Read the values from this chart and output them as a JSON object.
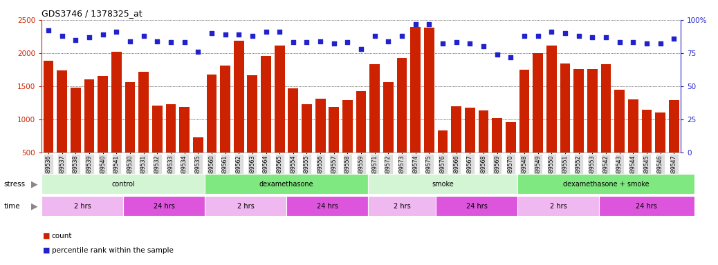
{
  "title": "GDS3746 / 1378325_at",
  "bar_color": "#cc2200",
  "dot_color": "#2222cc",
  "categories": [
    "GSM389536",
    "GSM389537",
    "GSM389538",
    "GSM389539",
    "GSM389540",
    "GSM389541",
    "GSM389530",
    "GSM389531",
    "GSM389532",
    "GSM389533",
    "GSM389534",
    "GSM389535",
    "GSM389560",
    "GSM389561",
    "GSM389562",
    "GSM389563",
    "GSM389564",
    "GSM389565",
    "GSM389554",
    "GSM389555",
    "GSM389556",
    "GSM389557",
    "GSM389558",
    "GSM389559",
    "GSM389571",
    "GSM389572",
    "GSM389573",
    "GSM389574",
    "GSM389575",
    "GSM389576",
    "GSM389566",
    "GSM389567",
    "GSM389568",
    "GSM389569",
    "GSM389570",
    "GSM389548",
    "GSM389549",
    "GSM389550",
    "GSM389551",
    "GSM389552",
    "GSM389553",
    "GSM389542",
    "GSM389543",
    "GSM389544",
    "GSM389545",
    "GSM389546",
    "GSM389547"
  ],
  "counts": [
    1880,
    1740,
    1480,
    1600,
    1650,
    2020,
    1560,
    1720,
    1210,
    1230,
    1190,
    730,
    1680,
    1810,
    2190,
    1660,
    1960,
    2110,
    1470,
    1230,
    1310,
    1190,
    1290,
    1420,
    1830,
    1560,
    1920,
    2390,
    2380,
    830,
    1200,
    1170,
    1130,
    1020,
    960,
    1750,
    2000,
    2110,
    1840,
    1760,
    1760,
    1830,
    1450,
    1300,
    1140,
    1100,
    1290
  ],
  "percentiles": [
    92,
    88,
    85,
    87,
    89,
    91,
    84,
    88,
    84,
    83,
    83,
    76,
    90,
    89,
    89,
    88,
    91,
    91,
    83,
    83,
    84,
    82,
    83,
    78,
    88,
    84,
    88,
    97,
    97,
    82,
    83,
    82,
    80,
    74,
    72,
    88,
    88,
    91,
    90,
    88,
    87,
    87,
    83,
    83,
    82,
    82,
    86
  ],
  "ylim_left": [
    500,
    2500
  ],
  "ylim_right": [
    0,
    100
  ],
  "yticks_left": [
    500,
    1000,
    1500,
    2000,
    2500
  ],
  "yticks_right": [
    0,
    25,
    50,
    75,
    100
  ],
  "stress_groups": [
    {
      "label": "control",
      "start": 0,
      "end": 11,
      "color": "#d4f5d4"
    },
    {
      "label": "dexamethasone",
      "start": 12,
      "end": 23,
      "color": "#80e880"
    },
    {
      "label": "smoke",
      "start": 24,
      "end": 34,
      "color": "#d4f5d4"
    },
    {
      "label": "dexamethasone + smoke",
      "start": 35,
      "end": 47,
      "color": "#80e880"
    }
  ],
  "time_groups": [
    {
      "label": "2 hrs",
      "start": 0,
      "end": 5,
      "color": "#f0b8f0"
    },
    {
      "label": "24 hrs",
      "start": 6,
      "end": 11,
      "color": "#dd55dd"
    },
    {
      "label": "2 hrs",
      "start": 12,
      "end": 17,
      "color": "#f0b8f0"
    },
    {
      "label": "24 hrs",
      "start": 18,
      "end": 23,
      "color": "#dd55dd"
    },
    {
      "label": "2 hrs",
      "start": 24,
      "end": 28,
      "color": "#f0b8f0"
    },
    {
      "label": "24 hrs",
      "start": 29,
      "end": 34,
      "color": "#dd55dd"
    },
    {
      "label": "2 hrs",
      "start": 35,
      "end": 40,
      "color": "#f0b8f0"
    },
    {
      "label": "24 hrs",
      "start": 41,
      "end": 47,
      "color": "#dd55dd"
    }
  ],
  "bg_color": "#ffffff",
  "left_axis_color": "#cc2200",
  "right_axis_color": "#2222cc",
  "xtick_bg": "#dddddd"
}
